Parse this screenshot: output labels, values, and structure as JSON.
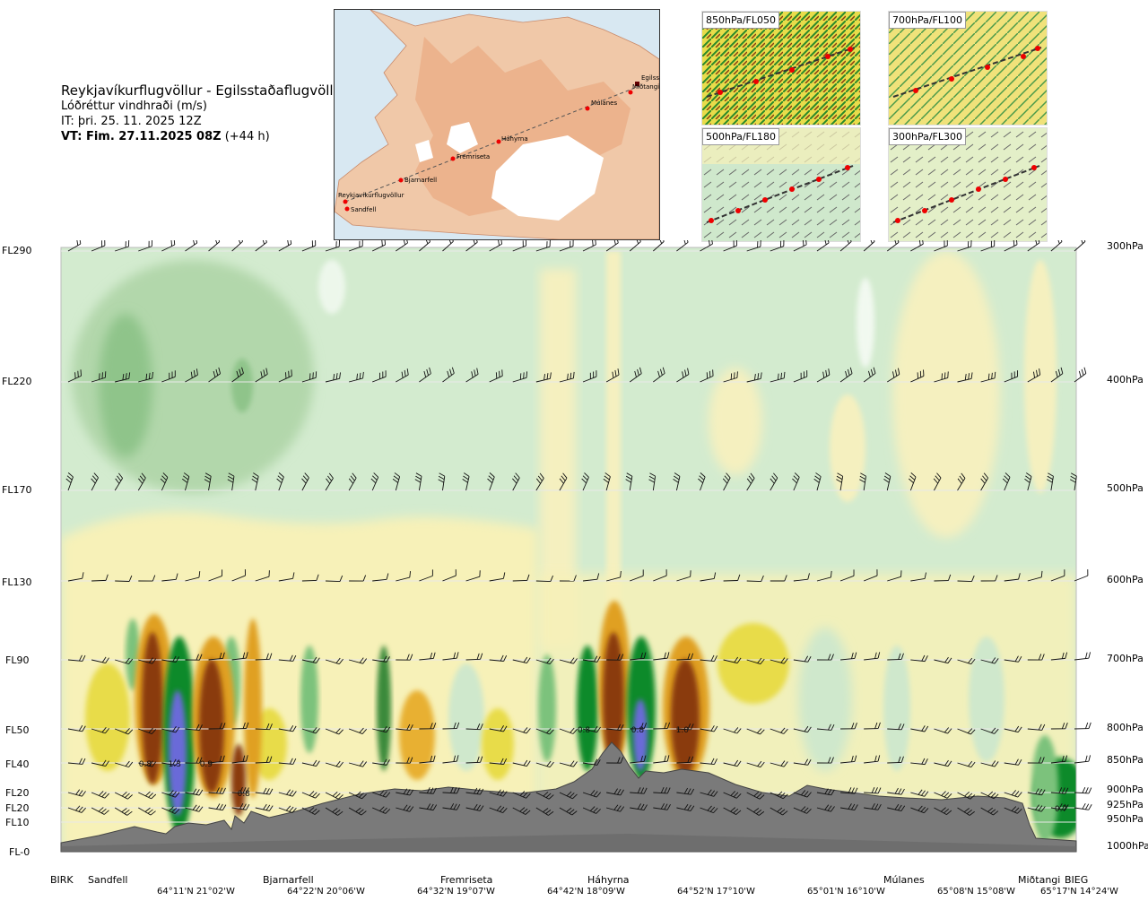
{
  "header": {
    "title": "Reykjavíkurflugvöllur - Egilsstaðaflugvöllur",
    "subtitle": "Lóðréttur vindhraði (m/s)",
    "issue_time": "IT: þri. 25. 11. 2025 12Z",
    "valid_time_bold": "VT: Fim. 27.11.2025 08Z",
    "valid_time_offset": " (+44 h)"
  },
  "map": {
    "stations": [
      "Reykjavíkurflugvöllur",
      "Sandfell",
      "Bjarnarfell",
      "Fremriseta",
      "Háhyrna",
      "Múlanes",
      "Egilss",
      "Miðtangi"
    ]
  },
  "thumbnails": [
    {
      "label": "850hPa/FL050"
    },
    {
      "label": "700hPa/FL100"
    },
    {
      "label": "500hPa/FL180"
    },
    {
      "label": "300hPa/FL300"
    }
  ],
  "colors": {
    "dark_green": "#3a8a3a",
    "green": "#7cc27c",
    "light_green": "#cfe8cc",
    "pale_yellow": "#f7f1b8",
    "yellow": "#e8dc4a",
    "orange": "#e0a020",
    "brown": "#8a3a10",
    "blue": "#6a6ad8",
    "terrain": "#7a7a7a",
    "darkgreen_deep": "#0d8a2a"
  },
  "chart_data": {
    "type": "heatmap",
    "title": "Lóðréttur vindhraði (m/s)",
    "left_axis_labels": [
      "FL290",
      "FL220",
      "FL170",
      "FL130",
      "FL90",
      "FL50",
      "FL40",
      "FL20",
      "FL20",
      "FL10",
      "FL-0"
    ],
    "right_axis_labels": [
      "300hPa",
      "400hPa",
      "500hPa",
      "600hPa",
      "700hPa",
      "800hPa",
      "850hPa",
      "900hPa",
      "925hPa",
      "950hPa",
      "1000hPa"
    ],
    "pressure_levels_hpa": [
      300,
      400,
      500,
      600,
      700,
      800,
      850,
      900,
      925,
      950,
      1000
    ],
    "stations": [
      "BIRK",
      "Sandfell",
      "Bjarnarfell",
      "Fremriseta",
      "Háhyrna",
      "Múlanes",
      "Miðtangi",
      "BIEG"
    ],
    "coordinates": [
      "64°11'N 21°02'W",
      "64°22'N 20°06'W",
      "64°32'N 19°07'W",
      "64°42'N 18°09'W",
      "64°52'N 17°10'W",
      "65°01'N 16°10'W",
      "65°08'N 15°08'W",
      "65°17'N 14°24'W"
    ],
    "annotations": [
      {
        "text": "0.8",
        "station_frac": 0.083,
        "pressure_hpa": 850
      },
      {
        "text": "1.3",
        "station_frac": 0.112,
        "pressure_hpa": 850
      },
      {
        "text": "0.9",
        "station_frac": 0.143,
        "pressure_hpa": 850
      },
      {
        "text": "0.8",
        "station_frac": 0.18,
        "pressure_hpa": 900
      },
      {
        "text": "0.8",
        "station_frac": 0.515,
        "pressure_hpa": 800
      },
      {
        "text": "0.8",
        "station_frac": 0.568,
        "pressure_hpa": 800
      },
      {
        "text": "1.0",
        "station_frac": 0.612,
        "pressure_hpa": 800
      },
      {
        "text": "0.7",
        "station_frac": 0.985,
        "pressure_hpa": 925
      }
    ]
  }
}
